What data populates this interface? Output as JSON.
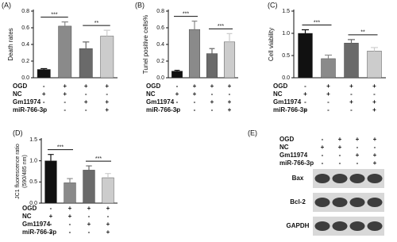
{
  "chart_data": [
    {
      "type": "bar",
      "panel": "(A)",
      "ylabel": "Death rates",
      "values": [
        0.1,
        0.62,
        0.35,
        0.5
      ],
      "errors": [
        0.01,
        0.05,
        0.08,
        0.07
      ],
      "colors": [
        "#111111",
        "#8a8a8a",
        "#6a6a6a",
        "#cccccc"
      ],
      "ylim": [
        0,
        0.8
      ],
      "yticks": [
        {
          "value": 0,
          "label": "0.0"
        },
        0.2,
        0.4,
        0.6,
        0.8
      ],
      "significance": [
        "***",
        "**"
      ],
      "conditions": [
        {
          "name": "OGD",
          "signs": [
            "-",
            "+",
            "+",
            "+"
          ]
        },
        {
          "name": "NC",
          "signs": [
            "+",
            "+",
            "-",
            "-"
          ]
        },
        {
          "name": "Gm11974",
          "signs": [
            "-",
            "-",
            "+",
            "+"
          ]
        },
        {
          "name": "miR-766-3p",
          "signs": [
            "-",
            "-",
            "-",
            "+"
          ]
        }
      ]
    },
    {
      "type": "bar",
      "panel": "(B)",
      "ylabel": "Tunel positive cells%",
      "values": [
        0.08,
        0.58,
        0.29,
        0.43
      ],
      "errors": [
        0.01,
        0.1,
        0.06,
        0.1
      ],
      "colors": [
        "#111111",
        "#8a8a8a",
        "#6a6a6a",
        "#cccccc"
      ],
      "ylim": [
        0,
        0.8
      ],
      "yticks": [
        {
          "value": 0,
          "label": "0.0"
        },
        0.2,
        0.4,
        0.6,
        0.8
      ],
      "significance": [
        "***",
        "***"
      ],
      "conditions": [
        {
          "name": "OGD",
          "signs": [
            "-",
            "+",
            "+",
            "+"
          ]
        },
        {
          "name": "NC",
          "signs": [
            "+",
            "+",
            "-",
            "-"
          ]
        },
        {
          "name": "Gm11974",
          "signs": [
            "-",
            "-",
            "+",
            "+"
          ]
        },
        {
          "name": "miR-766-3p",
          "signs": [
            "-",
            "-",
            "-",
            "+"
          ]
        }
      ]
    },
    {
      "type": "bar",
      "panel": "(C)",
      "ylabel": "Cell viability",
      "values": [
        1.0,
        0.43,
        0.78,
        0.6
      ],
      "errors": [
        0.08,
        0.08,
        0.08,
        0.08
      ],
      "colors": [
        "#111111",
        "#8a8a8a",
        "#6a6a6a",
        "#cccccc"
      ],
      "ylim": [
        0,
        1.5
      ],
      "yticks": [
        {
          "value": 0,
          "label": "0.0"
        },
        0.5,
        {
          "value": 1,
          "label": "1.0"
        },
        1.5
      ],
      "significance": [
        "***",
        "**"
      ],
      "conditions": [
        {
          "name": "OGD",
          "signs": [
            "-",
            "+",
            "+",
            "+"
          ]
        },
        {
          "name": "NC",
          "signs": [
            "+",
            "+",
            "-",
            "-"
          ]
        },
        {
          "name": "Gm11974",
          "signs": [
            "-",
            "-",
            "+",
            "+"
          ]
        },
        {
          "name": "miR-766-3p",
          "signs": [
            "-",
            "-",
            "-",
            "+"
          ]
        }
      ]
    },
    {
      "type": "bar",
      "panel": "(D)",
      "ylabel": [
        "JC1 fluorescence ratio",
        "(590/485 nm)"
      ],
      "values": [
        1.0,
        0.48,
        0.78,
        0.6
      ],
      "errors": [
        0.15,
        0.1,
        0.1,
        0.1
      ],
      "colors": [
        "#111111",
        "#8a8a8a",
        "#6a6a6a",
        "#cccccc"
      ],
      "ylim": [
        0,
        1.5
      ],
      "yticks": [
        {
          "value": 0,
          "label": "0.0"
        },
        0.5,
        {
          "value": 1,
          "label": "1.0"
        },
        1.5
      ],
      "significance": [
        "***",
        "***"
      ],
      "conditions": [
        {
          "name": "OGD",
          "signs": [
            "-",
            "+",
            "+",
            "+"
          ]
        },
        {
          "name": "NC",
          "signs": [
            "+",
            "+",
            "-",
            "-"
          ]
        },
        {
          "name": "Gm11974",
          "signs": [
            "-",
            "-",
            "+",
            "+"
          ]
        },
        {
          "name": "miR-766-3p",
          "signs": [
            "-",
            "-",
            "-",
            "+"
          ]
        }
      ]
    }
  ],
  "blot": {
    "panel": "(E)",
    "conditions": [
      {
        "name": "OGD",
        "signs": [
          "-",
          "+",
          "+",
          "+"
        ]
      },
      {
        "name": "NC",
        "signs": [
          "+",
          "+",
          "-",
          "-"
        ]
      },
      {
        "name": "Gm11974",
        "signs": [
          "-",
          "-",
          "+",
          "+"
        ]
      },
      {
        "name": "miR-766-3p",
        "signs": [
          "-",
          "-",
          "-",
          "+"
        ]
      }
    ],
    "bands": [
      "Bax",
      "Bcl-2",
      "GAPDH"
    ]
  }
}
